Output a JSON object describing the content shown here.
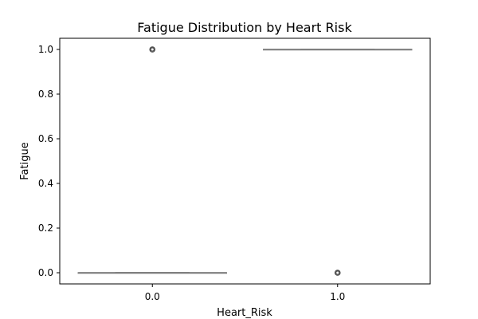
{
  "chart_data": {
    "type": "box",
    "title": "Fatigue Distribution by Heart Risk",
    "xlabel": "Heart_Risk",
    "ylabel": "Fatigue",
    "categories": [
      "0.0",
      "1.0"
    ],
    "ylim": [
      -0.05,
      1.05
    ],
    "yticks": [
      0.0,
      0.2,
      0.4,
      0.6,
      0.8,
      1.0
    ],
    "ytick_labels": [
      "0.0",
      "0.2",
      "0.4",
      "0.6",
      "0.8",
      "1.0"
    ],
    "boxes": [
      {
        "category": "0.0",
        "q1": 0.0,
        "median": 0.0,
        "q3": 0.0,
        "whisker_low": 0.0,
        "whisker_high": 0.0,
        "outliers": [
          1.0
        ]
      },
      {
        "category": "1.0",
        "q1": 1.0,
        "median": 1.0,
        "q3": 1.0,
        "whisker_low": 1.0,
        "whisker_high": 1.0,
        "outliers": [
          0.0
        ]
      }
    ],
    "colors": {
      "box": "#7f7f7f",
      "frame": "#000000",
      "outlier": "#404040"
    },
    "grid": false,
    "legend": "none"
  }
}
